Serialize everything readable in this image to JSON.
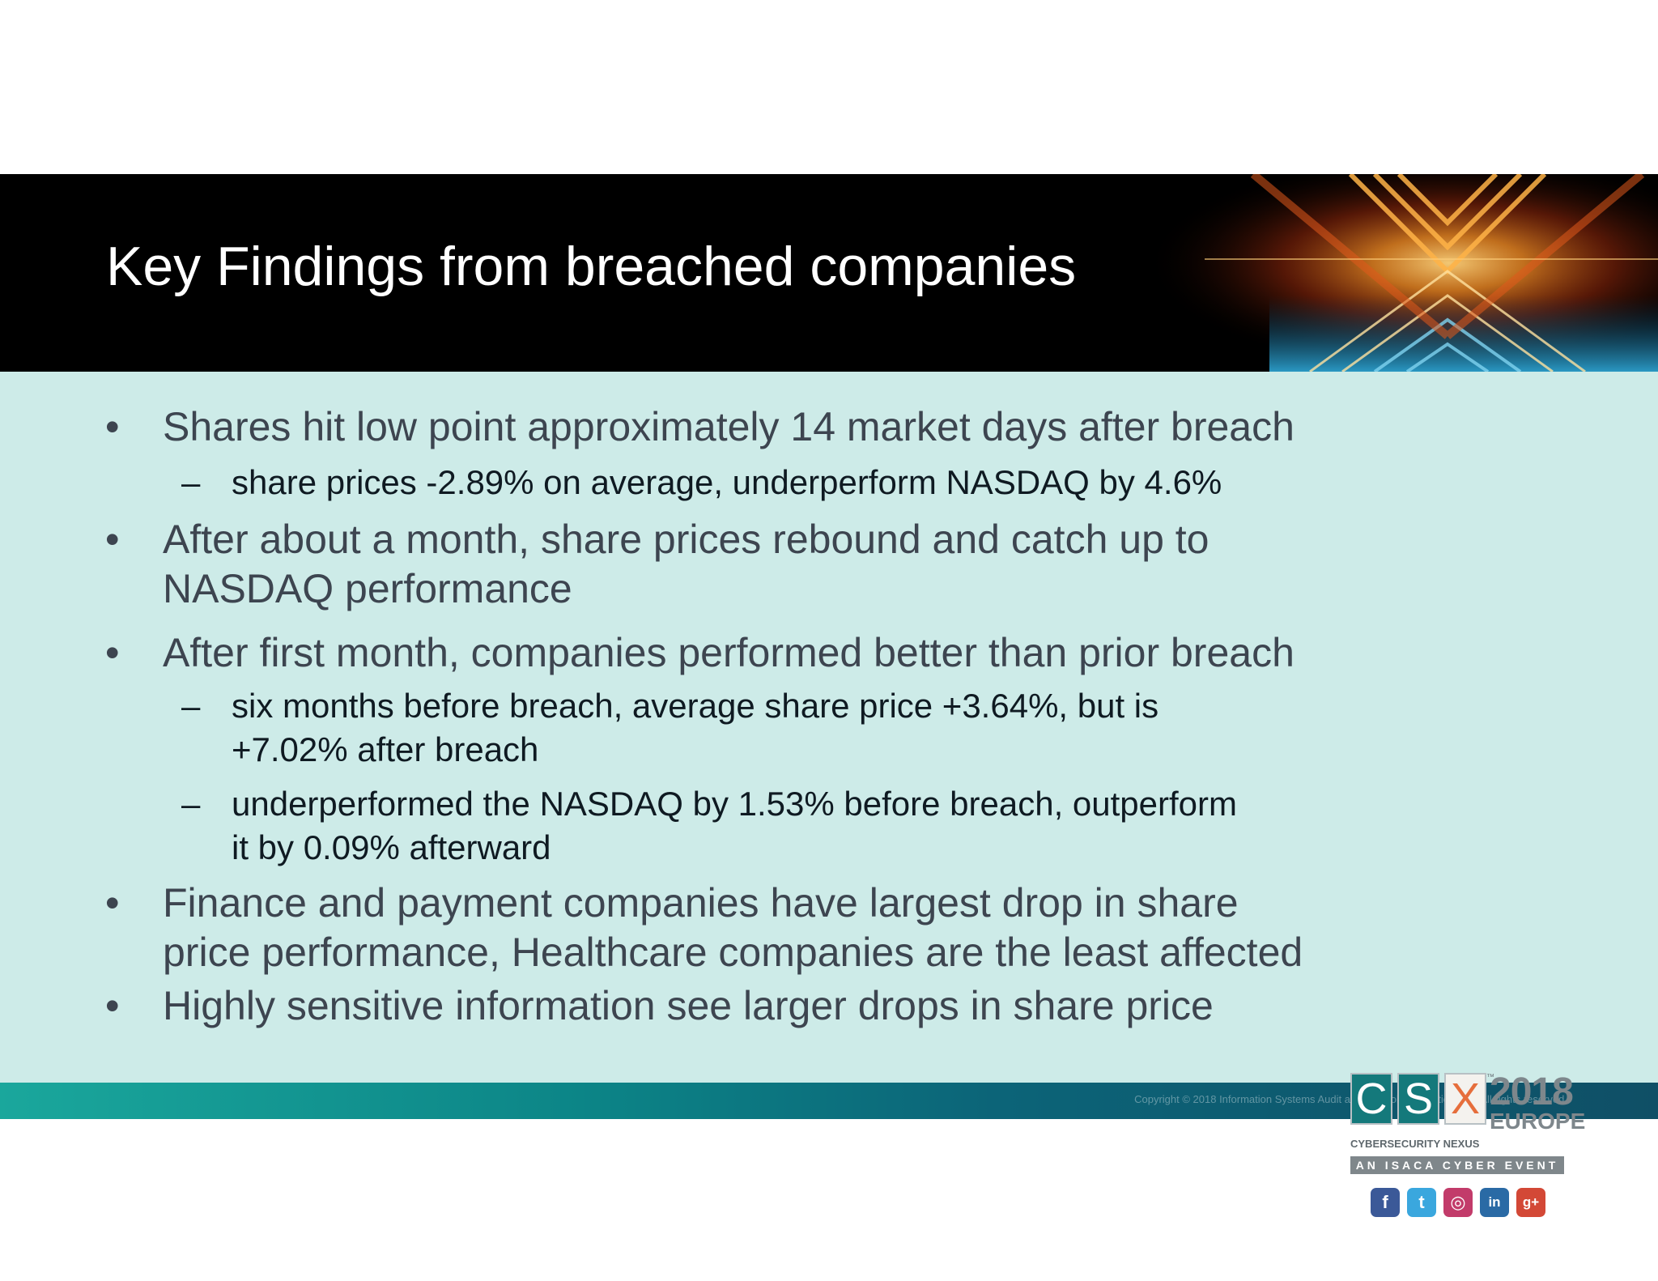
{
  "slide": {
    "title": "Key Findings from breached companies",
    "bullets": [
      {
        "symbol": "•",
        "lines": [
          "Shares hit low point approximately 14 market days after breach"
        ]
      },
      {
        "symbol": "–",
        "lines": [
          "share prices -2.89% on average, underperform NASDAQ by 4.6%"
        ]
      },
      {
        "symbol": "•",
        "lines": [
          "After about a month, share prices rebound and catch up to",
          "NASDAQ performance"
        ]
      },
      {
        "symbol": "•",
        "lines": [
          "After first month, companies performed better than prior breach"
        ]
      },
      {
        "symbol": "–",
        "lines": [
          "six months before breach, average share price +3.64%, but is",
          "+7.02% after breach"
        ]
      },
      {
        "symbol": "–",
        "lines": [
          "underperformed the NASDAQ by 1.53% before breach, outperform",
          "it by 0.09% afterward"
        ]
      },
      {
        "symbol": "•",
        "lines": [
          "Finance and payment companies have largest drop in share",
          "price performance, Healthcare companies are the least affected"
        ]
      },
      {
        "symbol": "•",
        "lines": [
          "Highly sensitive information see larger drops in share price"
        ]
      }
    ]
  },
  "logo": {
    "letters": [
      "C",
      "S",
      "X"
    ],
    "trademark": "™",
    "year": "2018",
    "region": "EUROPE",
    "tagline": "CYBERSECURITY NEXUS",
    "event": "AN ISACA CYBER EVENT",
    "social_icons": [
      {
        "name": "facebook-icon",
        "glyph": "f",
        "color": "#3b5998"
      },
      {
        "name": "twitter-icon",
        "glyph": "t",
        "color": "#3aa7de"
      },
      {
        "name": "instagram-icon",
        "glyph": "◎",
        "color": "#c23b6a"
      },
      {
        "name": "linkedin-icon",
        "glyph": "in",
        "color": "#2a6aa5"
      },
      {
        "name": "googleplus-icon",
        "glyph": "g+",
        "color": "#d34836"
      }
    ]
  },
  "footer": {
    "copyright": "Copyright © 2018 Information Systems Audit and Control Association, Inc. All rights reserved."
  },
  "colors": {
    "header_bg": "#000000",
    "body_bg": "#cdebe8",
    "accent_teal": "#14797b",
    "accent_orange": "#e66e3c"
  }
}
